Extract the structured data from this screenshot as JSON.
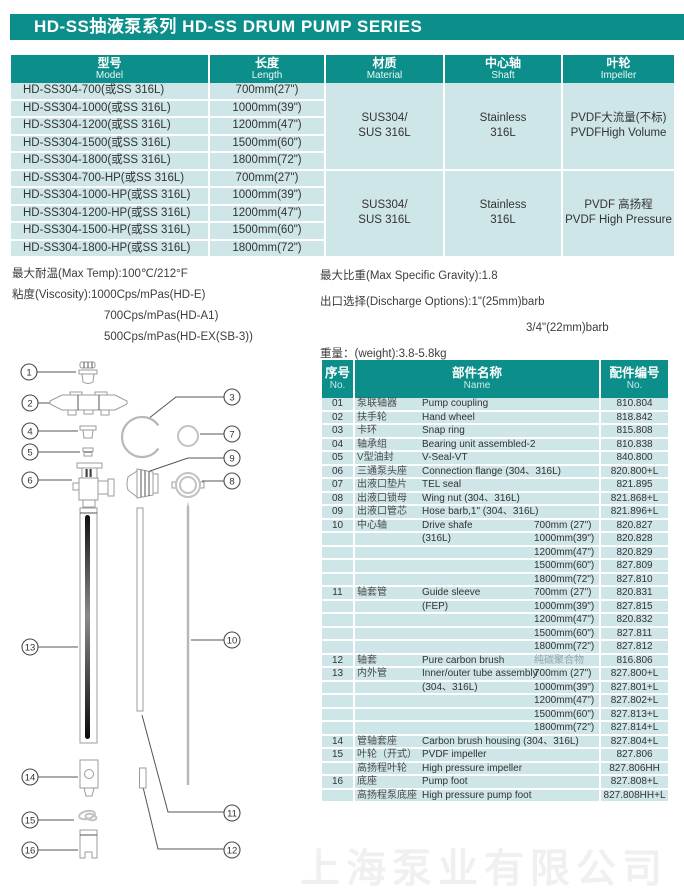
{
  "page": {
    "title": "HD-SS抽液泵系列 HD-SS DRUM PUMP SERIES",
    "watermark": "上海泵业有限公司"
  },
  "spec_table": {
    "headers": [
      {
        "zh": "型号",
        "en": "Model"
      },
      {
        "zh": "长度",
        "en": "Length"
      },
      {
        "zh": "材质",
        "en": "Material"
      },
      {
        "zh": "中心轴",
        "en": "Shaft"
      },
      {
        "zh": "叶轮",
        "en": "Impeller"
      }
    ],
    "rows": [
      {
        "model": "HD-SS304-700(或SS 316L)",
        "length": "700mm(27\")"
      },
      {
        "model": "HD-SS304-1000(或SS 316L)",
        "length": "1000mm(39\")"
      },
      {
        "model": "HD-SS304-1200(或SS 316L)",
        "length": "1200mm(47\")"
      },
      {
        "model": "HD-SS304-1500(或SS 316L)",
        "length": "1500mm(60\")"
      },
      {
        "model": "HD-SS304-1800(或SS 316L)",
        "length": "1800mm(72\")"
      },
      {
        "model": "HD-SS304-700-HP(或SS 316L)",
        "length": "700mm(27\")"
      },
      {
        "model": "HD-SS304-1000-HP(或SS 316L)",
        "length": "1000mm(39\")"
      },
      {
        "model": "HD-SS304-1200-HP(或SS 316L)",
        "length": "1200mm(47\")"
      },
      {
        "model": "HD-SS304-1500-HP(或SS 316L)",
        "length": "1500mm(60\")"
      },
      {
        "model": "HD-SS304-1800-HP(或SS 316L)",
        "length": "1800mm(72\")"
      }
    ],
    "groups": [
      {
        "material": [
          "SUS304/",
          "SUS 316L"
        ],
        "shaft": [
          "Stainless",
          "316L"
        ],
        "impeller": [
          "PVDF大流量(不标)",
          "PVDFHigh Volume"
        ]
      },
      {
        "material": [
          "SUS304/",
          "SUS 316L"
        ],
        "shaft": [
          "Stainless",
          "316L"
        ],
        "impeller": [
          "PVDF 高扬程",
          "PVDF High Pressure"
        ]
      }
    ]
  },
  "notes_left": {
    "line1": "最大耐温(Max Temp):100℃/212°F",
    "line2": "粘度(Viscosity):1000Cps/mPas(HD-E)",
    "line3": "700Cps/mPas(HD-A1)",
    "line4": "500Cps/mPas(HD-EX(SB-3))"
  },
  "notes_right": {
    "line1": "最大比重(Max Specific Gravity):1.8",
    "line2": "出口选择(Discharge Options):1\"(25mm)barb",
    "line3": "3/4\"(22mm)barb",
    "line4": "重量：(weight):3.8-5.8kg"
  },
  "parts_table": {
    "header": {
      "no_zh": "序号",
      "no_en": "No.",
      "name_zh": "部件名称",
      "name_en": "Name",
      "code_zh": "配件编号",
      "code_en": "No."
    },
    "rows": [
      {
        "no": "01",
        "zh": "泵联轴器",
        "en": "Pump coupling",
        "size": "",
        "code": "810.804"
      },
      {
        "no": "02",
        "zh": "扶手轮",
        "en": "Hand wheel",
        "size": "",
        "code": "818.842"
      },
      {
        "no": "03",
        "zh": "卡环",
        "en": "Snap ring",
        "size": "",
        "code": "815.808"
      },
      {
        "no": "04",
        "zh": "轴承组",
        "en": "Bearing unit assembled-2",
        "size": "",
        "code": "810.838"
      },
      {
        "no": "05",
        "zh": "V型油封",
        "en": "V-Seal-VT",
        "size": "",
        "code": "840.800"
      },
      {
        "no": "06",
        "zh": "三通泵头座",
        "en": "Connection flange (304、316L)",
        "size": "",
        "code": "820.800+L"
      },
      {
        "no": "07",
        "zh": "出液口垫片",
        "en": "TEL seal",
        "size": "",
        "code": "821.895"
      },
      {
        "no": "08",
        "zh": "出液口锁母",
        "en": "Wing nut (304、316L)",
        "size": "",
        "code": "821.868+L"
      },
      {
        "no": "09",
        "zh": "出液口管芯",
        "en": "Hose barb,1\" (304、316L)",
        "size": "",
        "code": "821.896+L"
      },
      {
        "no": "10",
        "zh": "中心轴",
        "en": "Drive shafe",
        "size": "700mm (27\")",
        "code": "820.827"
      },
      {
        "no": "",
        "zh": "",
        "en": "(316L)",
        "size": "1000mm(39\")",
        "code": "820.828"
      },
      {
        "no": "",
        "zh": "",
        "en": "",
        "size": "1200mm(47\")",
        "code": "820.829"
      },
      {
        "no": "",
        "zh": "",
        "en": "",
        "size": "1500mm(60\")",
        "code": "827.809"
      },
      {
        "no": "",
        "zh": "",
        "en": "",
        "size": "1800mm(72\")",
        "code": "827.810"
      },
      {
        "no": "11",
        "zh": "轴套管",
        "en": "Guide sleeve",
        "size": "700mm (27\")",
        "code": "820.831"
      },
      {
        "no": "",
        "zh": "",
        "en": "(FEP)",
        "size": "1000mm(39\")",
        "code": "827.815"
      },
      {
        "no": "",
        "zh": "",
        "en": "",
        "size": "1200mm(47\")",
        "code": "820.832"
      },
      {
        "no": "",
        "zh": "",
        "en": "",
        "size": "1500mm(60\")",
        "code": "827.811"
      },
      {
        "no": "",
        "zh": "",
        "en": "",
        "size": "1800mm(72\")",
        "code": "827.812"
      },
      {
        "no": "12",
        "zh": "轴套",
        "en": "Pure carbon brush",
        "size": "纯碳聚合物",
        "code": "816.806",
        "dim": true
      },
      {
        "no": "13",
        "zh": "内外管",
        "en": "Inner/outer tube assembly",
        "size": "700mm (27\")",
        "code": "827.800+L"
      },
      {
        "no": "",
        "zh": "",
        "en": "(304、316L)",
        "size": "1000mm(39\")",
        "code": "827.801+L"
      },
      {
        "no": "",
        "zh": "",
        "en": "",
        "size": "1200mm(47\")",
        "code": "827.802+L"
      },
      {
        "no": "",
        "zh": "",
        "en": "",
        "size": "1500mm(60\")",
        "code": "827.813+L"
      },
      {
        "no": "",
        "zh": "",
        "en": "",
        "size": "1800mm(72\")",
        "code": "827.814+L"
      },
      {
        "no": "14",
        "zh": "管轴套座",
        "en": "Carbon brush housing (304、316L)",
        "size": "",
        "code": "827.804+L"
      },
      {
        "no": "15",
        "zh": "叶轮（开式）",
        "en": "PVDF impeller",
        "size": "",
        "code": "827.806"
      },
      {
        "no": "",
        "zh": "高扬程叶轮",
        "en": "High pressure impeller",
        "size": "",
        "code": "827.806HH"
      },
      {
        "no": "16",
        "zh": "底座",
        "en": "Pump foot",
        "size": "",
        "code": "827.808+L"
      },
      {
        "no": "",
        "zh": "高扬程泵底座",
        "en": "High pressure pump foot",
        "size": "",
        "code": "827.808HH+L"
      }
    ]
  },
  "diagram": {
    "callouts": [
      "1",
      "2",
      "3",
      "4",
      "5",
      "6",
      "7",
      "8",
      "9",
      "10",
      "11",
      "12",
      "13",
      "14",
      "15",
      "16"
    ]
  },
  "colors": {
    "teal": "#0c8f8a",
    "row_bg": "#cfe6e9"
  }
}
